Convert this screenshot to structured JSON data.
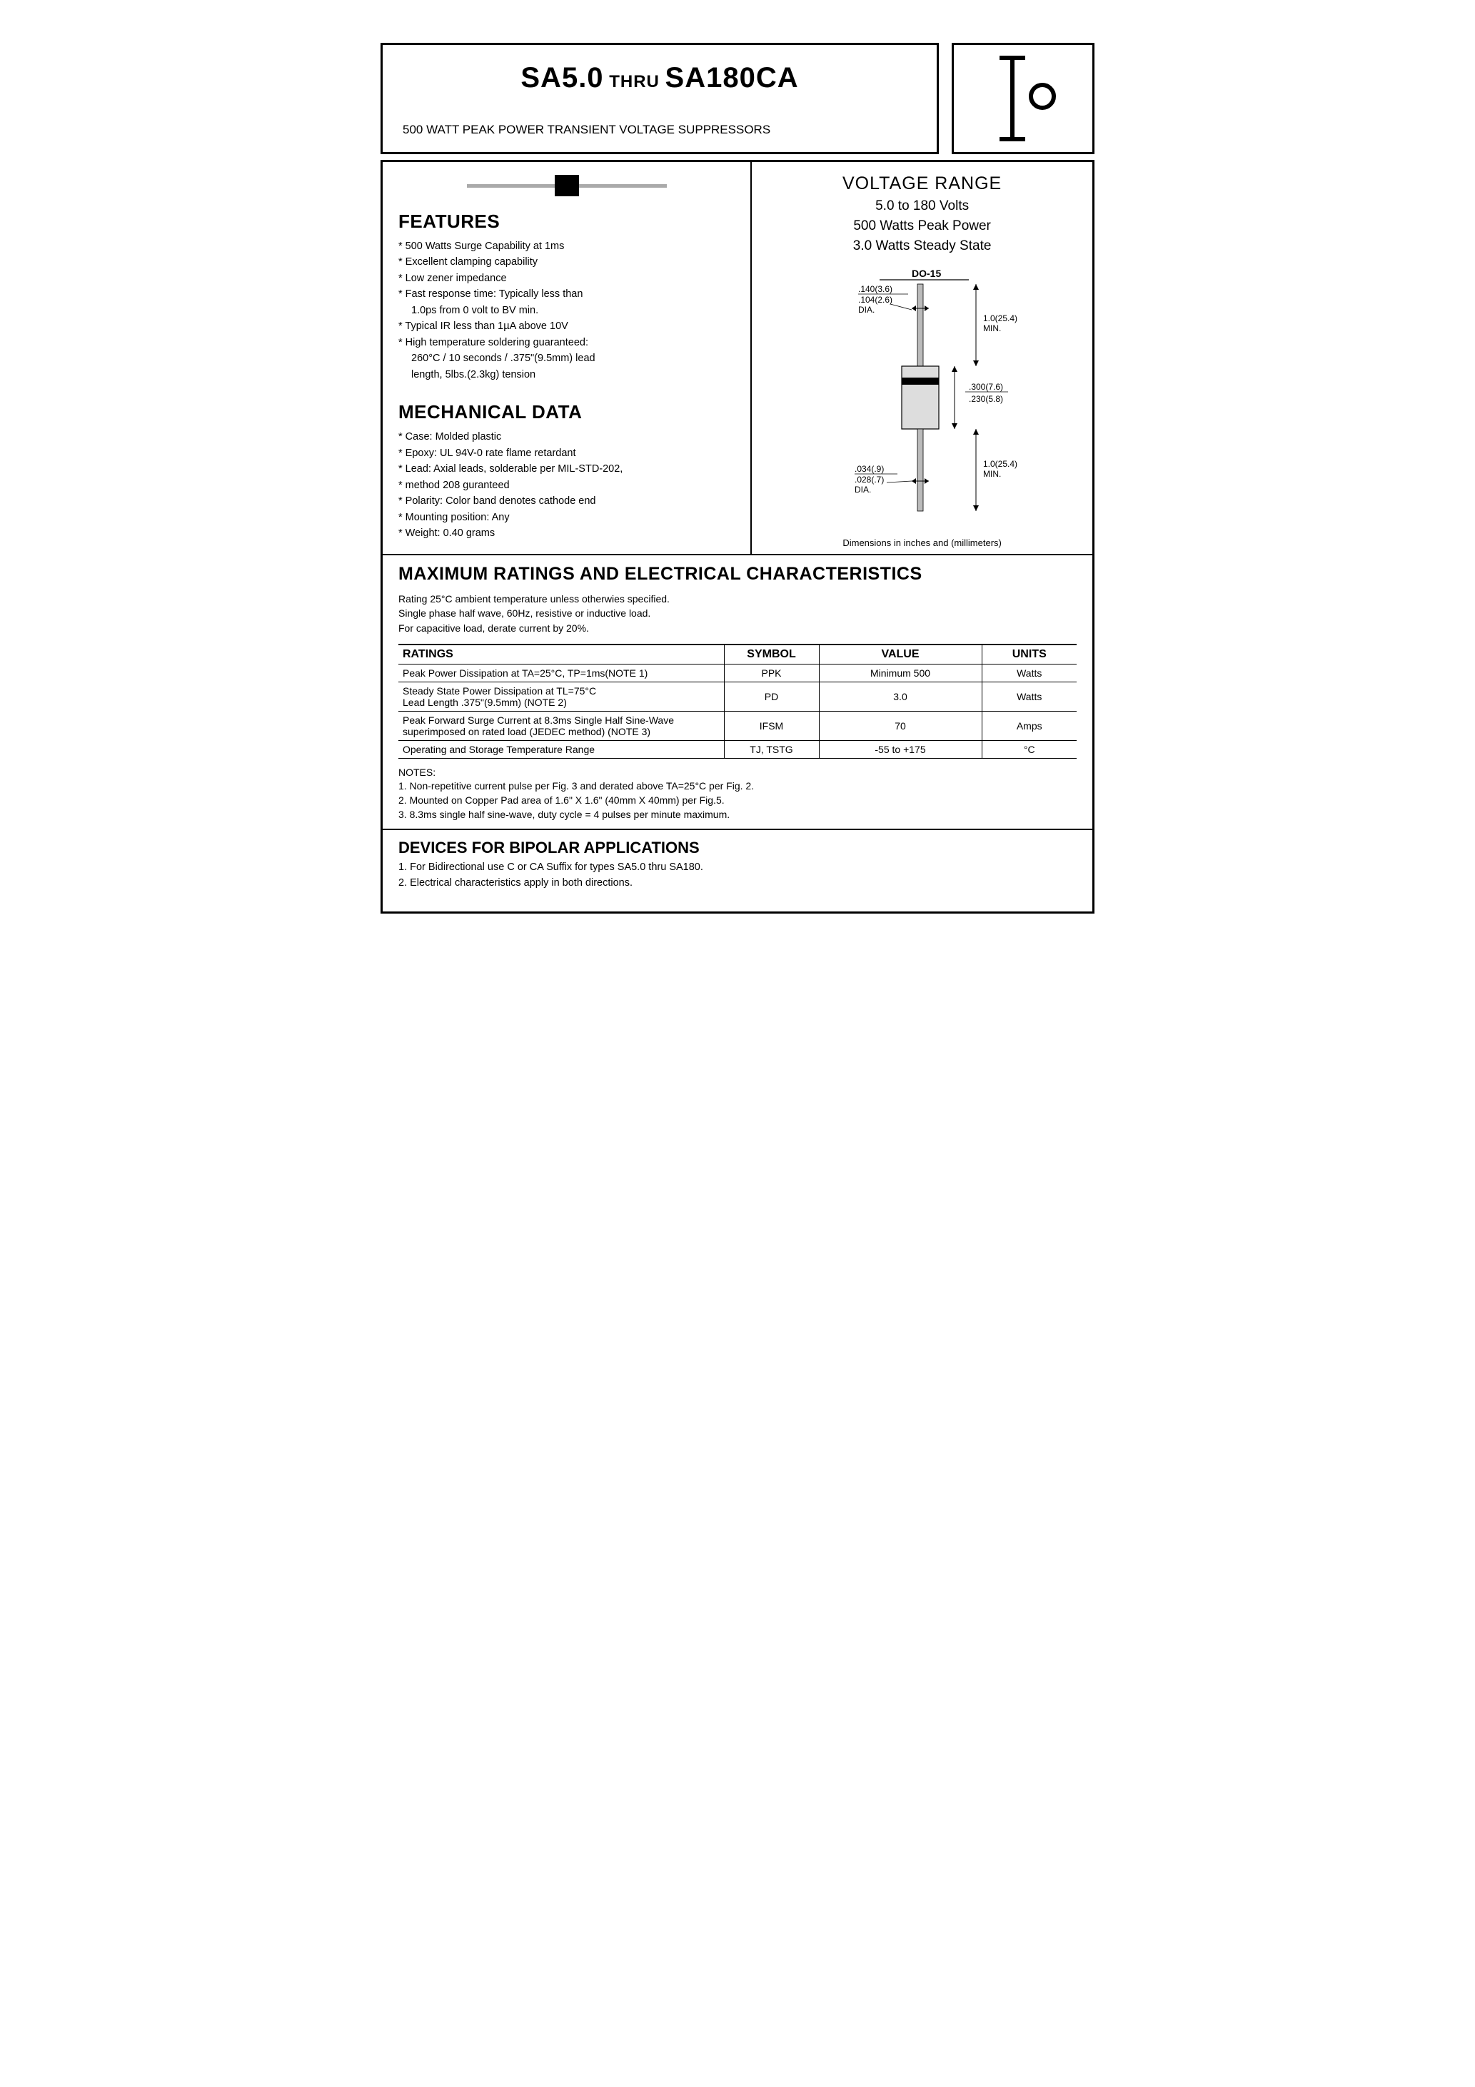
{
  "header": {
    "title_part1": "SA5.0",
    "title_thru": " THRU ",
    "title_part2": "SA180CA",
    "subtitle": "500 WATT PEAK POWER TRANSIENT VOLTAGE SUPPRESSORS"
  },
  "features": {
    "heading": "FEATURES",
    "items": [
      "500 Watts Surge Capability at 1ms",
      "Excellent clamping capability",
      "Low zener impedance",
      "Fast response time: Typically less than",
      "1.0ps from 0 volt to BV min.",
      "Typical IR less than 1µA above 10V",
      "High temperature soldering guaranteed:",
      "260°C / 10 seconds / .375\"(9.5mm) lead",
      "length, 5lbs.(2.3kg) tension"
    ],
    "indent_indices": [
      4,
      7,
      8
    ]
  },
  "mechanical": {
    "heading": "MECHANICAL DATA",
    "items": [
      "Case: Molded plastic",
      "Epoxy: UL 94V-0 rate flame retardant",
      "Lead: Axial leads, solderable per MIL-STD-202,",
      "           method 208 guranteed",
      "Polarity: Color band denotes cathode end",
      "Mounting position: Any",
      "Weight: 0.40 grams"
    ]
  },
  "voltage_range": {
    "heading": "VOLTAGE RANGE",
    "lines": [
      "5.0 to 180 Volts",
      "500 Watts Peak Power",
      "3.0 Watts Steady State"
    ]
  },
  "package": {
    "label": "DO-15",
    "dim_top_dia_1": ".140(3.6)",
    "dim_top_dia_2": ".104(2.6)",
    "dim_top_dia_lbl": "DIA.",
    "len_min_1": "1.0(25.4)",
    "len_min_lbl": "MIN.",
    "body_h_1": ".300(7.6)",
    "body_h_2": ".230(5.8)",
    "lead_dia_1": ".034(.9)",
    "lead_dia_2": ".028(.7)",
    "lead_dia_lbl": "DIA.",
    "caption": "Dimensions in inches and (millimeters)"
  },
  "ratings": {
    "heading": "MAXIMUM RATINGS AND ELECTRICAL CHARACTERISTICS",
    "preamble": [
      "Rating 25°C ambient temperature unless otherwies specified.",
      "Single phase half wave, 60Hz, resistive or inductive load.",
      "For capacitive load, derate current by 20%."
    ],
    "columns": [
      "RATINGS",
      "SYMBOL",
      "VALUE",
      "UNITS"
    ],
    "rows": [
      {
        "r": "Peak Power Dissipation at TA=25°C, TP=1ms(NOTE 1)",
        "s": "PPK",
        "v": "Minimum 500",
        "u": "Watts"
      },
      {
        "r": "Steady State Power Dissipation at TL=75°C\nLead Length .375\"(9.5mm) (NOTE 2)",
        "s": "PD",
        "v": "3.0",
        "u": "Watts"
      },
      {
        "r": "Peak Forward Surge Current at 8.3ms Single Half Sine-Wave\nsuperimposed on rated load (JEDEC method) (NOTE 3)",
        "s": "IFSM",
        "v": "70",
        "u": "Amps"
      },
      {
        "r": "Operating and Storage Temperature Range",
        "s": "TJ, TSTG",
        "v": "-55 to +175",
        "u": "°C"
      }
    ],
    "notes_heading": "NOTES:",
    "notes": [
      "1. Non-repetitive current pulse per Fig. 3 and derated above TA=25°C per Fig. 2.",
      "2. Mounted on Copper Pad area of 1.6\" X 1.6\" (40mm X 40mm) per Fig.5.",
      "3. 8.3ms single half sine-wave, duty cycle = 4 pulses per minute maximum."
    ]
  },
  "bipolar": {
    "heading": "DEVICES FOR BIPOLAR APPLICATIONS",
    "items": [
      "1. For Bidirectional use C or CA Suffix for types SA5.0 thru SA180.",
      "2. Electrical characteristics apply in both directions."
    ]
  }
}
